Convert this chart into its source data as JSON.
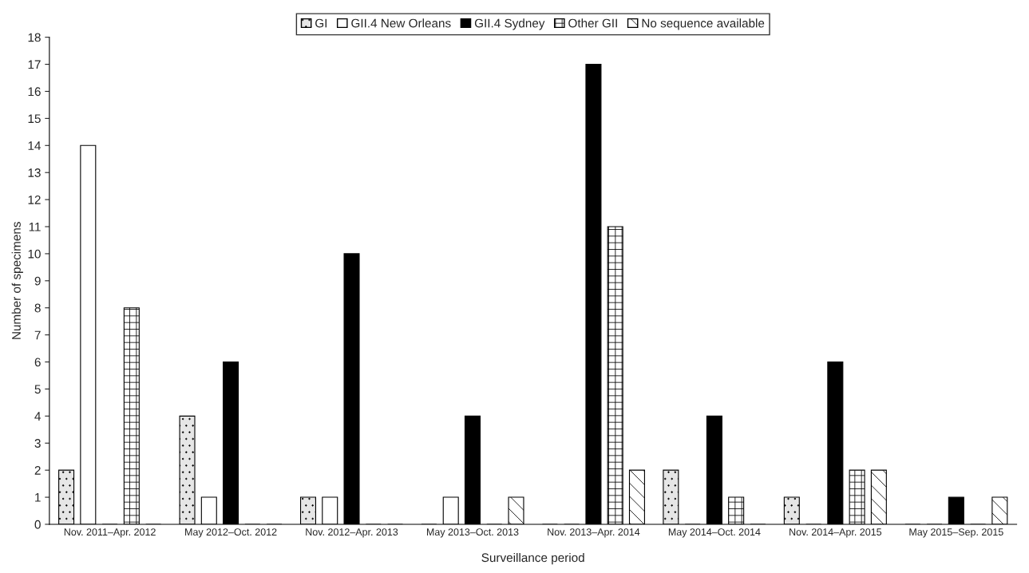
{
  "chart_data": {
    "type": "bar",
    "xlabel": "Surveillance period",
    "ylabel": "Number of specimens",
    "categories": [
      "Nov. 2011–Apr. 2012",
      "May 2012–Oct. 2012",
      "Nov. 2012–Apr. 2013",
      "May 2013–Oct. 2013",
      "Nov. 2013–Apr. 2014",
      "May 2014–Oct. 2014",
      "Nov. 2014–Apr. 2015",
      "May 2015–Sep. 2015"
    ],
    "series": [
      {
        "name": "GI",
        "color": "#e6e6e6",
        "values": [
          2,
          4,
          1,
          0,
          0,
          2,
          1,
          0
        ]
      },
      {
        "name": "GII.4 New Orleans",
        "color": "#ffffff",
        "values": [
          14,
          1,
          1,
          1,
          0,
          0,
          0,
          0
        ]
      },
      {
        "name": "GII.4 Sydney",
        "color": "#000000",
        "values": [
          0,
          6,
          10,
          4,
          17,
          4,
          6,
          1
        ]
      },
      {
        "name": "Other GII",
        "color": "#ffffff",
        "values": [
          8,
          0,
          0,
          0,
          11,
          1,
          2,
          0
        ]
      },
      {
        "name": "No sequence available",
        "color": "#ffffff",
        "values": [
          0,
          0,
          0,
          1,
          2,
          0,
          2,
          1
        ]
      }
    ],
    "ylim": [
      0,
      18
    ],
    "yticks": [
      0,
      1,
      2,
      3,
      4,
      5,
      6,
      7,
      8,
      9,
      10,
      11,
      12,
      13,
      14,
      15,
      16,
      17,
      18
    ],
    "grid": false,
    "legend": "top"
  }
}
